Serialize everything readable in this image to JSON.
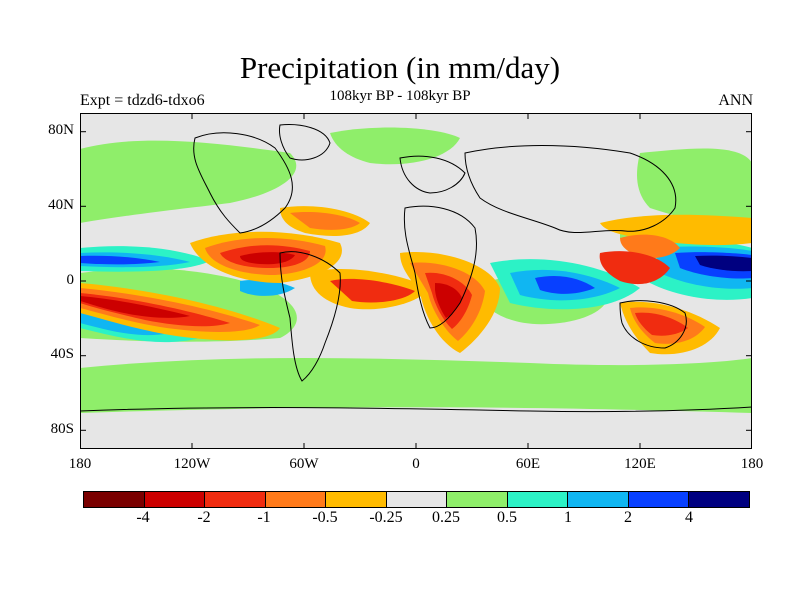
{
  "title": "Precipitation (in mm/day)",
  "subtitle": "108kyr BP - 108kyr BP",
  "left_label": "Expt = tdzd6-tdxo6",
  "right_label": "ANN",
  "axes": {
    "lat_labels": [
      "80N",
      "40N",
      "0",
      "40S",
      "80S"
    ],
    "lon_labels": [
      "180",
      "120W",
      "60W",
      "0",
      "60E",
      "120E",
      "180"
    ]
  },
  "colorbar": {
    "colors": [
      "#7a0000",
      "#cc0000",
      "#f02c10",
      "#ff7a1a",
      "#ffbb00",
      "#e6e6e6",
      "#8fee6a",
      "#2cf2c6",
      "#10b6f2",
      "#0840ff",
      "#000080"
    ],
    "labels": [
      "-4",
      "-2",
      "-1",
      "-0.5",
      "-0.25",
      "0.25",
      "0.5",
      "1",
      "2",
      "4"
    ]
  }
}
